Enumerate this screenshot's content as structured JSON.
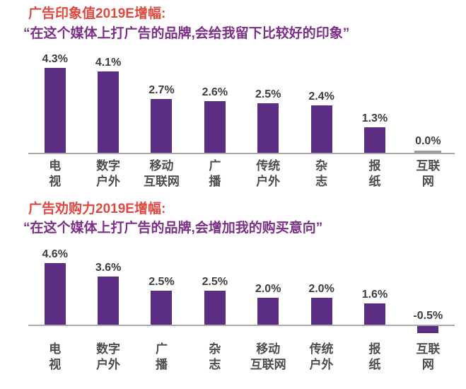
{
  "page": {
    "background": "#ffffff",
    "language": "zh-CN"
  },
  "colors": {
    "bar": "#5b2d83",
    "bar_zero": "#9a9a9a",
    "title_red": "#e0483f",
    "subtitle_purple": "#7b2f86",
    "value_label": "#3d3d3d",
    "category_label": "#4d4d4d",
    "axis_line": "#a9a9a9"
  },
  "chart_data": [
    {
      "type": "bar",
      "title": "广告印象值2019E增幅:",
      "subtitle": "“在这个媒体上打广告的品牌,会给我留下比较好的印象”",
      "categories": [
        "电视",
        "数字户外",
        "移动互联网",
        "广播",
        "传统户外",
        "杂志",
        "报纸",
        "互联网"
      ],
      "category_lines": [
        [
          "电",
          "视"
        ],
        [
          "数字",
          "户外"
        ],
        [
          "移动",
          "互联网"
        ],
        [
          "广",
          "播"
        ],
        [
          "传统",
          "户外"
        ],
        [
          "杂",
          "志"
        ],
        [
          "报",
          "纸"
        ],
        [
          "互联",
          "网"
        ]
      ],
      "values": [
        4.3,
        4.1,
        2.7,
        2.6,
        2.5,
        2.4,
        1.3,
        0.0
      ],
      "value_labels": [
        "4.3%",
        "4.1%",
        "2.7%",
        "2.6%",
        "2.5%",
        "2.4%",
        "1.3%",
        "0.0%"
      ],
      "unit": "%",
      "ylim": [
        0,
        5
      ],
      "grid": false,
      "legend": false,
      "xlabel": "",
      "ylabel": ""
    },
    {
      "type": "bar",
      "title": "广告劝购力2019E增幅:",
      "subtitle": "“在这个媒体上打广告的品牌,会增加我的购买意向”",
      "categories": [
        "电视",
        "数字户外",
        "广播",
        "杂志",
        "移动互联网",
        "传统户外",
        "报纸",
        "互联网"
      ],
      "category_lines": [
        [
          "电",
          "视"
        ],
        [
          "数字",
          "户外"
        ],
        [
          "广",
          "播"
        ],
        [
          "杂",
          "志"
        ],
        [
          "移动",
          "互联网"
        ],
        [
          "传统",
          "户外"
        ],
        [
          "报",
          "纸"
        ],
        [
          "互联",
          "网"
        ]
      ],
      "values": [
        4.6,
        3.6,
        2.5,
        2.5,
        2.0,
        2.0,
        1.6,
        -0.5
      ],
      "value_labels": [
        "4.6%",
        "3.6%",
        "2.5%",
        "2.5%",
        "2.0%",
        "2.0%",
        "1.6%",
        "-0.5%"
      ],
      "unit": "%",
      "ylim": [
        -1,
        5
      ],
      "grid": false,
      "legend": false,
      "xlabel": "",
      "ylabel": ""
    }
  ]
}
